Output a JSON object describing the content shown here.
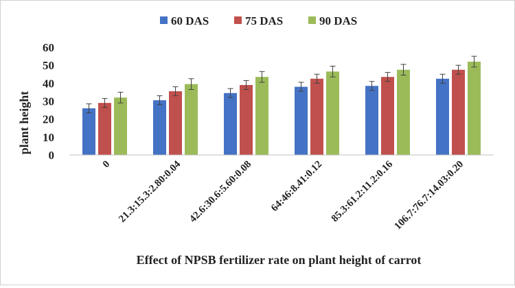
{
  "chart_data": {
    "type": "bar",
    "title": "",
    "xlabel": "Effect of NPSB fertilizer rate on plant height of carrot",
    "ylabel": "plant height",
    "ylim": [
      0,
      60
    ],
    "yticks": [
      "0",
      "10",
      "20",
      "30",
      "40",
      "50",
      "60"
    ],
    "ytick_values": [
      0,
      10,
      20,
      30,
      40,
      50,
      60
    ],
    "grid": false,
    "legend_position": "top",
    "categories": [
      "0",
      "21.3:15.3:2.80:0.04",
      "42.6:30.6:5.60:0.08",
      "64:46:8.41:0.12",
      "85.3:61.2:11.2:0.16",
      "106.7:76.7:14.03:0.20"
    ],
    "series": [
      {
        "name": "60 DAS",
        "color": "#4472c4",
        "values": [
          26,
          30.5,
          34.5,
          38,
          38.5,
          42.5
        ],
        "errors": [
          2.5,
          2.5,
          2.5,
          2.5,
          2.5,
          2.5
        ]
      },
      {
        "name": "75 DAS",
        "color": "#c0504d",
        "values": [
          29,
          35.5,
          39,
          42.5,
          43.5,
          47.5
        ],
        "errors": [
          2.5,
          2.5,
          2.5,
          2.5,
          2.5,
          2.5
        ]
      },
      {
        "name": "90 DAS",
        "color": "#9bbb59",
        "values": [
          32,
          39.5,
          43.5,
          46.5,
          47.5,
          52
        ],
        "errors": [
          3,
          3,
          3,
          3,
          3,
          3
        ]
      }
    ]
  }
}
